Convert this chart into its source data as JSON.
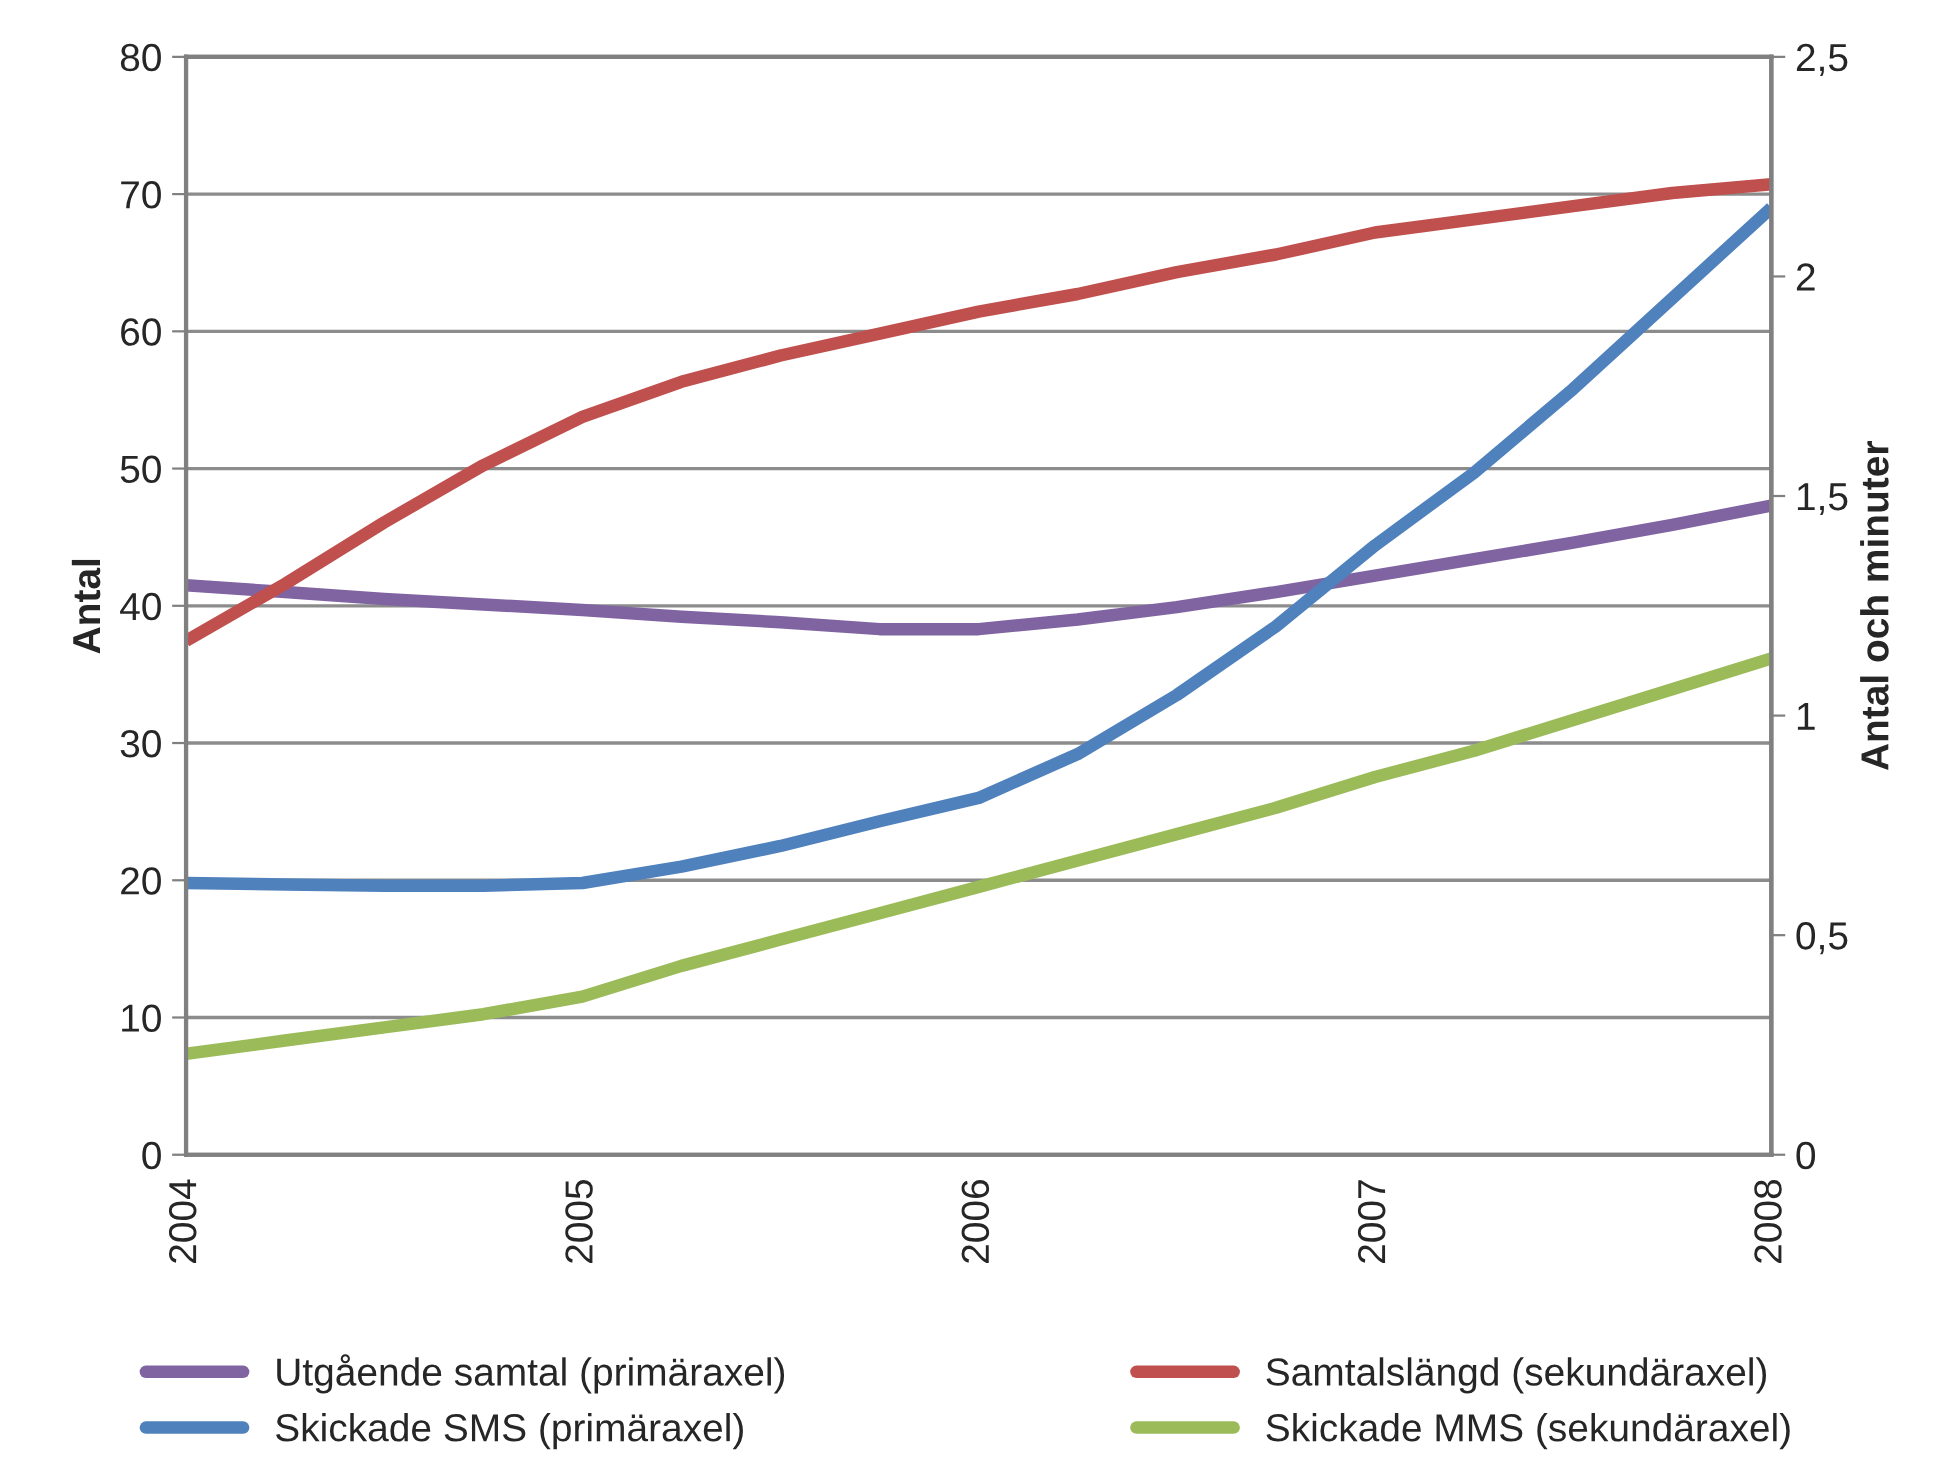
{
  "chart_data": {
    "type": "line",
    "ylabel": "Antal",
    "y2label": "Antal och minuter",
    "x": [
      2004,
      2004.25,
      2004.5,
      2004.75,
      2005,
      2005.25,
      2005.5,
      2005.75,
      2006,
      2006.25,
      2006.5,
      2006.75,
      2007,
      2007.25,
      2007.5,
      2007.75,
      2008
    ],
    "xlim": [
      2004,
      2008
    ],
    "xticks": [
      2004,
      2005,
      2006,
      2007,
      2008
    ],
    "ylim": [
      0,
      80
    ],
    "yticks": [
      0,
      10,
      20,
      30,
      40,
      50,
      60,
      70,
      80
    ],
    "y2lim": [
      0,
      2.5
    ],
    "y2ticks": [
      0,
      {
        "value": 0.5,
        "label": "0,5"
      },
      1,
      {
        "value": 1.5,
        "label": "1,5"
      },
      2,
      {
        "value": 2.5,
        "label": "2,5"
      }
    ],
    "grid": "y",
    "legend": "bottom",
    "marker": "none",
    "line_style": "solid",
    "series": [
      {
        "name": "Utgående samtal (primäraxel)",
        "color": "#8064a2",
        "values": [
          41.5,
          41.0,
          40.5,
          40.1,
          39.7,
          39.2,
          38.8,
          38.3,
          38.3,
          39.0,
          39.9,
          41.0,
          42.2,
          43.4,
          44.6,
          45.9,
          47.3
        ]
      },
      {
        "name": "Skickade SMS (primäraxel)",
        "color": "#4f81bd",
        "values": [
          19.8,
          19.7,
          19.6,
          19.6,
          19.8,
          21.0,
          22.5,
          24.3,
          26.0,
          29.2,
          33.5,
          38.5,
          44.4,
          49.7,
          55.8,
          62.4,
          69.0
        ]
      },
      {
        "name": "Samtalslängd (sekundäraxel)",
        "color": "#c0504d",
        "axis": "y2",
        "values": [
          1.17,
          1.3,
          1.44,
          1.57,
          1.68,
          1.76,
          1.82,
          1.87,
          1.92,
          1.96,
          2.01,
          2.05,
          2.1,
          2.13,
          2.16,
          2.19,
          2.21
        ]
      },
      {
        "name": "Skickade MMS (sekundäraxel)",
        "color": "#9bbb59",
        "axis": "y2",
        "values": [
          0.23,
          0.26,
          0.29,
          0.32,
          0.36,
          0.43,
          0.49,
          0.55,
          0.61,
          0.67,
          0.73,
          0.79,
          0.86,
          0.92,
          0.99,
          1.06,
          1.13
        ]
      }
    ]
  }
}
